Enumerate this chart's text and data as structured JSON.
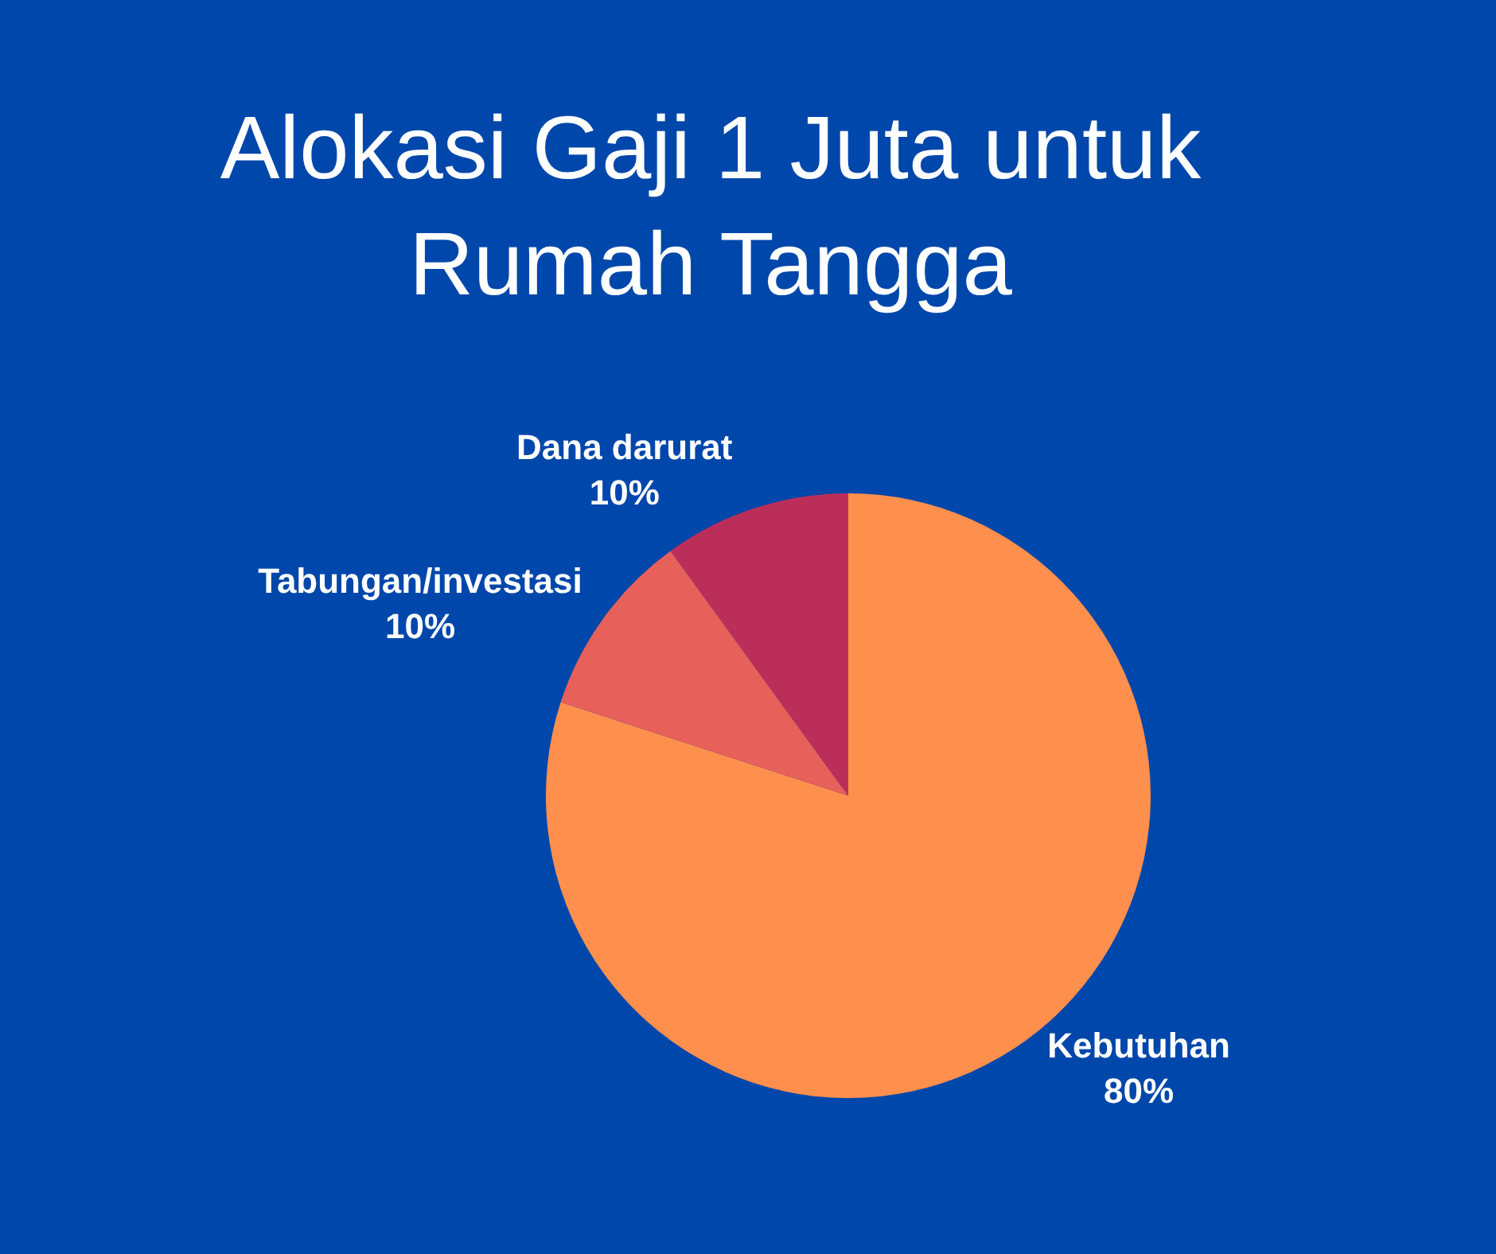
{
  "chart_data": {
    "type": "pie",
    "title": "Alokasi Gaji 1 Juta untuk Rumah Tangga",
    "categories": [
      "Kebutuhan",
      "Tabungan/investasi",
      "Dana darurat"
    ],
    "values": [
      80,
      10,
      10
    ],
    "value_labels": [
      "80%",
      "10%",
      "10%"
    ],
    "colors": [
      "#ff8f4d",
      "#e8605a",
      "#bc2e5a"
    ]
  }
}
